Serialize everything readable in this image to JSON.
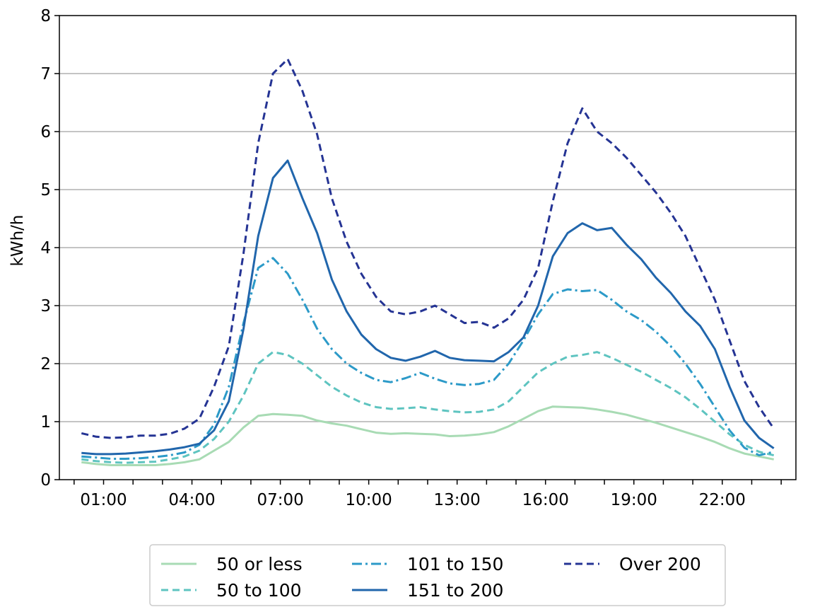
{
  "chart_data": {
    "type": "line",
    "title": "",
    "xlabel": "",
    "ylabel": "kWh/h",
    "ylim": [
      0,
      8
    ],
    "yticks": [
      "0",
      "1",
      "2",
      "3",
      "4",
      "5",
      "6",
      "7",
      "8"
    ],
    "xticks": [
      "01:00",
      "04:00",
      "07:00",
      "10:00",
      "13:00",
      "16:00",
      "19:00",
      "22:00"
    ],
    "x": [
      0.25,
      0.75,
      1.25,
      1.75,
      2.25,
      2.75,
      3.25,
      3.75,
      4.25,
      4.75,
      5.25,
      5.75,
      6.25,
      6.75,
      7.25,
      7.75,
      8.25,
      8.75,
      9.25,
      9.75,
      10.25,
      10.75,
      11.25,
      11.75,
      12.25,
      12.75,
      13.25,
      13.75,
      14.25,
      14.75,
      15.25,
      15.75,
      16.25,
      16.75,
      17.25,
      17.75,
      18.25,
      18.75,
      19.25,
      19.75,
      20.25,
      20.75,
      21.25,
      21.75,
      22.25,
      22.75,
      23.25,
      23.75
    ],
    "grid": "horizontal",
    "legend_position": "bottom-center",
    "series": [
      {
        "name": "50 or less",
        "color": "#a8dbb4",
        "dash": "solid",
        "values": [
          0.3,
          0.27,
          0.25,
          0.25,
          0.25,
          0.25,
          0.27,
          0.3,
          0.35,
          0.5,
          0.65,
          0.9,
          1.1,
          1.13,
          1.12,
          1.1,
          1.02,
          0.97,
          0.93,
          0.87,
          0.81,
          0.79,
          0.8,
          0.79,
          0.78,
          0.75,
          0.76,
          0.78,
          0.82,
          0.92,
          1.05,
          1.18,
          1.26,
          1.25,
          1.24,
          1.21,
          1.17,
          1.12,
          1.05,
          0.98,
          0.9,
          0.82,
          0.74,
          0.65,
          0.54,
          0.45,
          0.4,
          0.35
        ]
      },
      {
        "name": "50 to 100",
        "color": "#5ec4c0",
        "dash": "dashed",
        "values": [
          0.35,
          0.32,
          0.3,
          0.29,
          0.3,
          0.31,
          0.35,
          0.4,
          0.5,
          0.7,
          1.0,
          1.45,
          2.0,
          2.2,
          2.15,
          2.0,
          1.8,
          1.6,
          1.45,
          1.33,
          1.25,
          1.22,
          1.23,
          1.25,
          1.21,
          1.18,
          1.16,
          1.17,
          1.21,
          1.35,
          1.6,
          1.85,
          2.0,
          2.12,
          2.15,
          2.2,
          2.1,
          1.98,
          1.86,
          1.72,
          1.58,
          1.42,
          1.22,
          1.0,
          0.78,
          0.6,
          0.48,
          0.42
        ]
      },
      {
        "name": "101 to 150",
        "color": "#2c9ac8",
        "dash": "dashdot",
        "values": [
          0.4,
          0.38,
          0.36,
          0.36,
          0.37,
          0.39,
          0.42,
          0.47,
          0.6,
          0.95,
          1.6,
          2.7,
          3.65,
          3.82,
          3.55,
          3.1,
          2.6,
          2.25,
          2.0,
          1.84,
          1.72,
          1.68,
          1.75,
          1.84,
          1.74,
          1.66,
          1.63,
          1.65,
          1.72,
          2.0,
          2.4,
          2.85,
          3.2,
          3.28,
          3.25,
          3.27,
          3.1,
          2.9,
          2.75,
          2.55,
          2.3,
          2.0,
          1.65,
          1.25,
          0.85,
          0.55,
          0.42,
          0.48
        ]
      },
      {
        "name": "151 to 200",
        "color": "#2166ac",
        "dash": "solid",
        "values": [
          0.46,
          0.44,
          0.44,
          0.45,
          0.47,
          0.49,
          0.52,
          0.56,
          0.62,
          0.85,
          1.35,
          2.6,
          4.2,
          5.2,
          5.5,
          4.85,
          4.25,
          3.45,
          2.9,
          2.5,
          2.25,
          2.1,
          2.05,
          2.12,
          2.22,
          2.1,
          2.06,
          2.05,
          2.04,
          2.2,
          2.45,
          3.0,
          3.85,
          4.25,
          4.42,
          4.3,
          4.34,
          4.05,
          3.8,
          3.48,
          3.22,
          2.9,
          2.65,
          2.25,
          1.6,
          1.02,
          0.72,
          0.54
        ]
      },
      {
        "name": "Over 200",
        "color": "#253494",
        "dash": "dashed",
        "values": [
          0.8,
          0.74,
          0.72,
          0.73,
          0.76,
          0.76,
          0.79,
          0.88,
          1.05,
          1.6,
          2.3,
          3.9,
          5.8,
          7.0,
          7.25,
          6.7,
          5.95,
          4.85,
          4.1,
          3.55,
          3.15,
          2.9,
          2.85,
          2.9,
          3.0,
          2.85,
          2.7,
          2.72,
          2.62,
          2.78,
          3.1,
          3.65,
          4.8,
          5.8,
          6.4,
          6.0,
          5.8,
          5.55,
          5.25,
          4.95,
          4.6,
          4.2,
          3.65,
          3.1,
          2.4,
          1.7,
          1.25,
          0.88
        ]
      }
    ]
  }
}
